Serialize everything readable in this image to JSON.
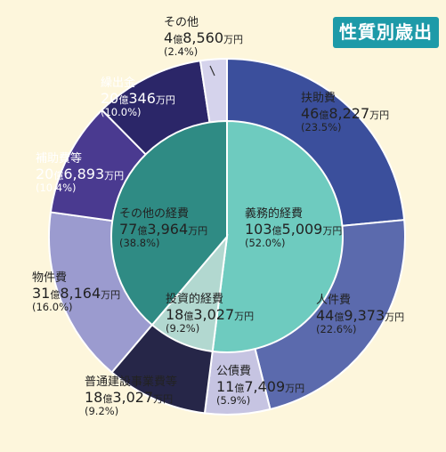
{
  "badge": "性質別歳出",
  "colors": {
    "background": "#fdf6dc",
    "badge": "#1d9aa8",
    "outline": "#ffffff"
  },
  "chart_data": {
    "type": "pie",
    "title": "",
    "inner": [
      {
        "name": "義務的経費",
        "amount": "103億5,009万円",
        "amount_parts": [
          "103",
          "億",
          "5,009",
          "万円"
        ],
        "percent": 52.0,
        "percent_label": "(52.0%)",
        "color": "#6ecbbf"
      },
      {
        "name": "投資的経費",
        "amount": "18億3,027万円",
        "amount_parts": [
          "18",
          "億",
          "3,027",
          "万円"
        ],
        "percent": 9.2,
        "percent_label": "(9.2%)",
        "color": "#b2d8d0"
      },
      {
        "name": "その他の経費",
        "amount": "77億3,964万円",
        "amount_parts": [
          "77",
          "億",
          "3,964",
          "万円"
        ],
        "percent": 38.8,
        "percent_label": "(38.8%)",
        "color": "#2f8b84"
      }
    ],
    "outer": [
      {
        "name": "扶助費",
        "amount": "46億8,227万円",
        "amount_parts": [
          "46",
          "億",
          "8,227",
          "万円"
        ],
        "percent": 23.5,
        "percent_label": "(23.5%)",
        "color": "#3b4f9c"
      },
      {
        "name": "人件費",
        "amount": "44億9,373万円",
        "amount_parts": [
          "44",
          "億",
          "9,373",
          "万円"
        ],
        "percent": 22.6,
        "percent_label": "(22.6%)",
        "color": "#5b6aad"
      },
      {
        "name": "公債費",
        "amount": "11億7,409万円",
        "amount_parts": [
          "11",
          "億",
          "7,409",
          "万円"
        ],
        "percent": 5.9,
        "percent_label": "(5.9%)",
        "color": "#c6c4e2"
      },
      {
        "name": "普通建設事業費等",
        "amount": "18億3,027万円",
        "amount_parts": [
          "18",
          "億",
          "3,027",
          "万円"
        ],
        "percent": 9.2,
        "percent_label": "(9.2%)",
        "color": "#262648"
      },
      {
        "name": "物件費",
        "amount": "31億8,164万円",
        "amount_parts": [
          "31",
          "億",
          "8,164",
          "万円"
        ],
        "percent": 16.0,
        "percent_label": "(16.0%)",
        "color": "#9b9bcf"
      },
      {
        "name": "補助費等",
        "amount": "20億6,893万円",
        "amount_parts": [
          "20",
          "億",
          "6,893",
          "万円"
        ],
        "percent": 10.4,
        "percent_label": "(10.4%)",
        "color": "#4a3a90"
      },
      {
        "name": "繰出金",
        "amount": "20億346万円",
        "amount_parts": [
          "20",
          "億",
          "346",
          "万円"
        ],
        "percent": 10.0,
        "percent_label": "(10.0%)",
        "color": "#2b2668"
      },
      {
        "name": "その他",
        "amount": "4億8,560万円",
        "amount_parts": [
          "4",
          "億",
          "8,560",
          "万円"
        ],
        "percent": 2.4,
        "percent_label": "(2.4%)",
        "color": "#d5d3ec"
      }
    ]
  }
}
